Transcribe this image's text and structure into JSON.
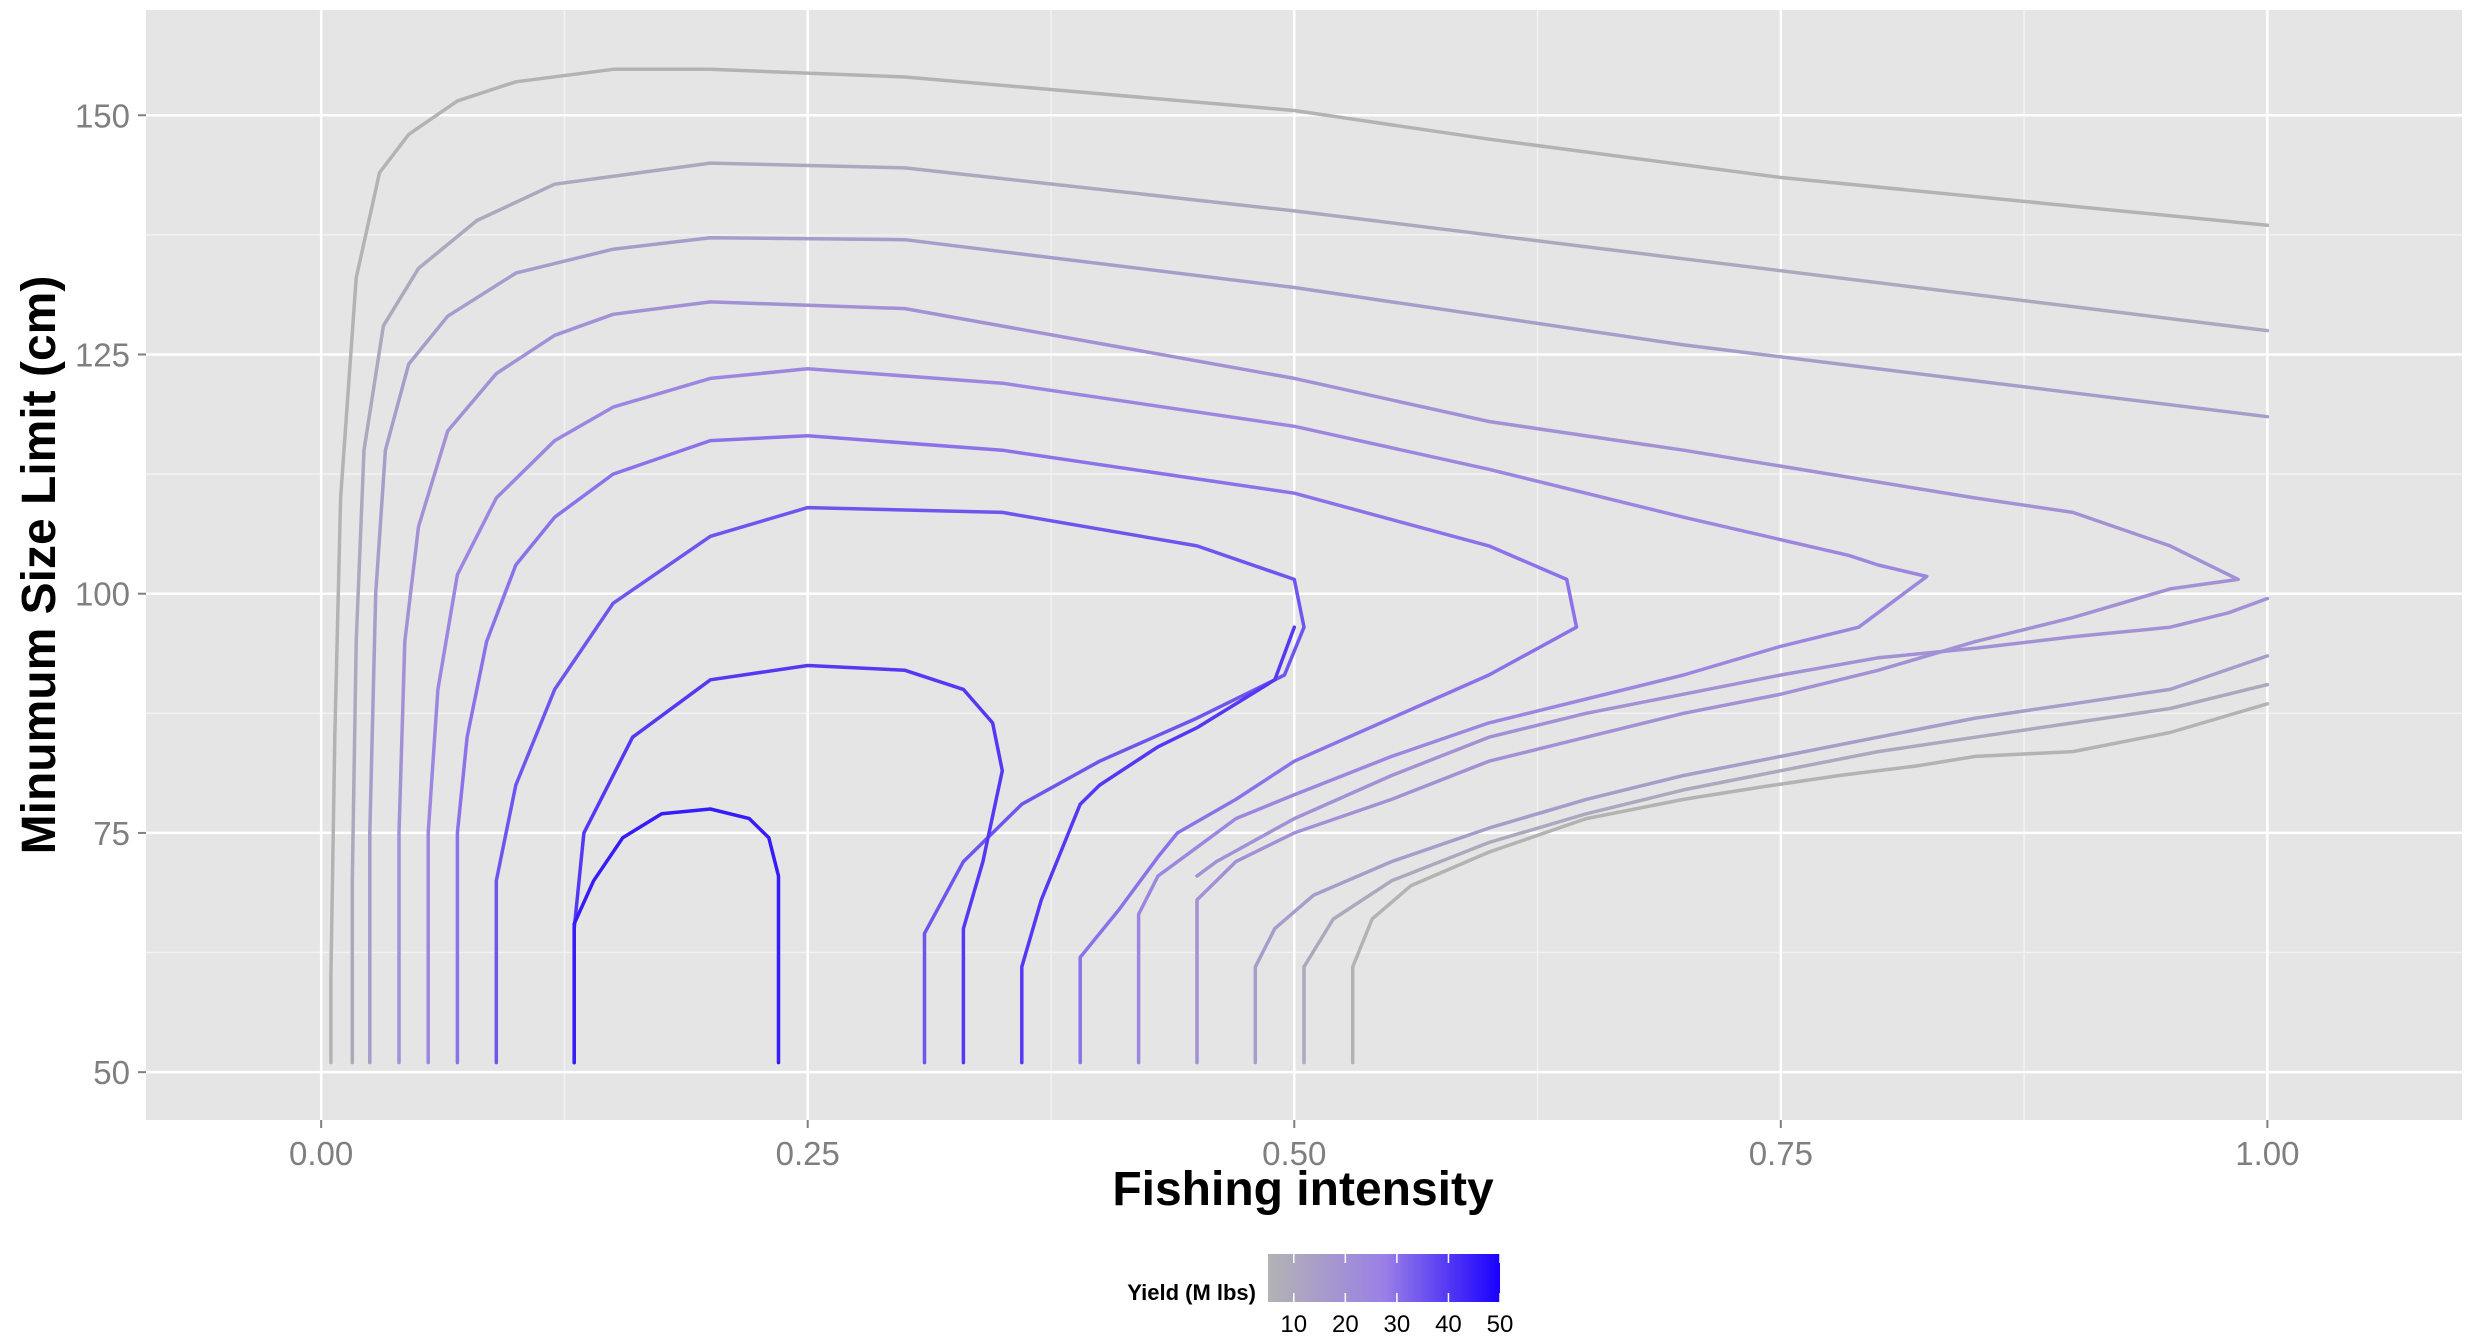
{
  "chart_data": {
    "type": "contour",
    "xlabel": "Fishing intensity",
    "ylabel": "Minumum Size Limit (cm)",
    "xlim": [
      -0.09,
      1.1
    ],
    "ylim": [
      45,
      161
    ],
    "x_ticks": [
      {
        "value": 0.0,
        "label": "0.00"
      },
      {
        "value": 0.25,
        "label": "0.25"
      },
      {
        "value": 0.5,
        "label": "0.50"
      },
      {
        "value": 0.75,
        "label": "0.75"
      },
      {
        "value": 1.0,
        "label": "1.00"
      }
    ],
    "y_ticks": [
      {
        "value": 50,
        "label": "50"
      },
      {
        "value": 75,
        "label": "75"
      },
      {
        "value": 100,
        "label": "100"
      },
      {
        "value": 125,
        "label": "125"
      },
      {
        "value": 150,
        "label": "150"
      }
    ],
    "grid": true,
    "background": "#e5e5e5",
    "legend": {
      "title": "Yield (M lbs)",
      "placement": "bottom",
      "range": [
        5,
        50
      ],
      "ticks": [
        10,
        20,
        30,
        40,
        50
      ],
      "color_low": "#b3b3b3",
      "color_high": "#1a00ff"
    },
    "series": [
      {
        "level": 5,
        "points": [
          [
            0.005,
            51
          ],
          [
            0.005,
            60
          ],
          [
            0.007,
            85
          ],
          [
            0.01,
            110
          ],
          [
            0.018,
            133
          ],
          [
            0.03,
            144
          ],
          [
            0.045,
            148
          ],
          [
            0.07,
            151.5
          ],
          [
            0.1,
            153.5
          ],
          [
            0.15,
            154.8
          ],
          [
            0.2,
            154.8
          ],
          [
            0.3,
            154
          ],
          [
            0.5,
            150.5
          ],
          [
            0.6,
            147.5
          ],
          [
            0.75,
            143.5
          ],
          [
            0.9,
            140.5
          ],
          [
            1.0,
            138.5
          ]
        ]
      },
      {
        "level": 5,
        "points": [
          [
            0.53,
            51
          ],
          [
            0.53,
            61
          ],
          [
            0.54,
            66
          ],
          [
            0.56,
            69.5
          ],
          [
            0.6,
            73
          ],
          [
            0.65,
            76.5
          ],
          [
            0.7,
            78.5
          ],
          [
            0.74,
            79.8
          ],
          [
            0.78,
            81
          ],
          [
            0.82,
            82
          ],
          [
            0.85,
            83
          ],
          [
            0.9,
            83.5
          ],
          [
            0.95,
            85.5
          ],
          [
            1.0,
            88.5
          ]
        ]
      },
      {
        "level": 10,
        "points": [
          [
            0.016,
            51
          ],
          [
            0.016,
            70
          ],
          [
            0.018,
            95
          ],
          [
            0.022,
            115
          ],
          [
            0.032,
            128
          ],
          [
            0.05,
            134
          ],
          [
            0.08,
            139
          ],
          [
            0.12,
            142.8
          ],
          [
            0.2,
            145
          ],
          [
            0.3,
            144.5
          ],
          [
            0.5,
            140
          ],
          [
            0.7,
            135
          ],
          [
            0.9,
            130
          ],
          [
            1.0,
            127.5
          ]
        ]
      },
      {
        "level": 10,
        "points": [
          [
            0.505,
            51
          ],
          [
            0.505,
            61
          ],
          [
            0.52,
            66
          ],
          [
            0.55,
            70
          ],
          [
            0.6,
            74
          ],
          [
            0.65,
            77
          ],
          [
            0.7,
            79.5
          ],
          [
            0.75,
            81.5
          ],
          [
            0.8,
            83.5
          ],
          [
            0.85,
            85
          ],
          [
            0.9,
            86.5
          ],
          [
            0.95,
            88
          ],
          [
            1.0,
            90.5
          ]
        ]
      },
      {
        "level": 15,
        "points": [
          [
            0.025,
            51
          ],
          [
            0.025,
            75
          ],
          [
            0.028,
            100
          ],
          [
            0.033,
            115
          ],
          [
            0.045,
            124
          ],
          [
            0.065,
            129
          ],
          [
            0.1,
            133.5
          ],
          [
            0.15,
            136
          ],
          [
            0.2,
            137.2
          ],
          [
            0.3,
            137
          ],
          [
            0.5,
            132
          ],
          [
            0.7,
            126
          ],
          [
            0.9,
            121
          ],
          [
            1.0,
            118.5
          ]
        ]
      },
      {
        "level": 15,
        "points": [
          [
            0.48,
            51
          ],
          [
            0.48,
            61
          ],
          [
            0.49,
            65
          ],
          [
            0.51,
            68.5
          ],
          [
            0.55,
            72
          ],
          [
            0.6,
            75.5
          ],
          [
            0.65,
            78.5
          ],
          [
            0.7,
            81
          ],
          [
            0.75,
            83
          ],
          [
            0.8,
            85
          ],
          [
            0.85,
            87
          ],
          [
            0.9,
            88.5
          ],
          [
            0.95,
            90
          ],
          [
            1.0,
            93.5
          ]
        ]
      },
      {
        "level": 20,
        "points": [
          [
            0.04,
            51
          ],
          [
            0.04,
            75
          ],
          [
            0.043,
            95
          ],
          [
            0.05,
            107
          ],
          [
            0.065,
            117
          ],
          [
            0.09,
            123
          ],
          [
            0.12,
            127
          ],
          [
            0.15,
            129.2
          ],
          [
            0.2,
            130.5
          ],
          [
            0.3,
            129.8
          ],
          [
            0.5,
            122.5
          ],
          [
            0.6,
            118
          ],
          [
            0.7,
            115
          ],
          [
            0.85,
            110
          ],
          [
            0.9,
            108.5
          ],
          [
            0.95,
            105
          ],
          [
            0.985,
            101.5
          ],
          [
            0.95,
            100.5
          ],
          [
            0.9,
            97.5
          ],
          [
            0.85,
            95
          ],
          [
            0.8,
            92
          ],
          [
            0.75,
            89.5
          ],
          [
            0.7,
            87.5
          ],
          [
            0.65,
            85
          ],
          [
            0.6,
            82.5
          ],
          [
            0.55,
            78.5
          ],
          [
            0.5,
            75
          ],
          [
            0.47,
            72
          ],
          [
            0.45,
            68
          ],
          [
            0.45,
            61
          ],
          [
            0.45,
            51
          ]
        ]
      },
      {
        "level": 20,
        "points": [
          [
            1.0,
            99.5
          ],
          [
            0.98,
            98
          ],
          [
            0.95,
            96.5
          ],
          [
            0.9,
            95.5
          ],
          [
            0.85,
            94.3
          ],
          [
            0.8,
            93.3
          ],
          [
            0.75,
            91.5
          ],
          [
            0.7,
            89.5
          ],
          [
            0.65,
            87.5
          ],
          [
            0.6,
            85
          ],
          [
            0.55,
            81
          ],
          [
            0.5,
            76.5
          ],
          [
            0.46,
            72
          ],
          [
            0.45,
            70.5
          ]
        ]
      },
      {
        "level": 25,
        "points": [
          [
            0.055,
            51
          ],
          [
            0.055,
            75
          ],
          [
            0.06,
            90
          ],
          [
            0.07,
            102
          ],
          [
            0.09,
            110
          ],
          [
            0.12,
            116
          ],
          [
            0.15,
            119.5
          ],
          [
            0.2,
            122.5
          ],
          [
            0.25,
            123.5
          ],
          [
            0.35,
            122
          ],
          [
            0.5,
            117.5
          ],
          [
            0.6,
            113
          ],
          [
            0.7,
            108
          ],
          [
            0.785,
            104
          ],
          [
            0.8,
            103
          ],
          [
            0.825,
            101.8
          ],
          [
            0.79,
            96.5
          ],
          [
            0.75,
            94.5
          ],
          [
            0.7,
            91.5
          ],
          [
            0.65,
            89
          ],
          [
            0.6,
            86.5
          ],
          [
            0.55,
            83
          ],
          [
            0.5,
            79
          ],
          [
            0.47,
            76.5
          ],
          [
            0.45,
            73.5
          ],
          [
            0.43,
            70.5
          ],
          [
            0.42,
            66.5
          ],
          [
            0.42,
            60
          ],
          [
            0.42,
            51
          ]
        ]
      },
      {
        "level": 30,
        "points": [
          [
            0.07,
            51
          ],
          [
            0.07,
            75
          ],
          [
            0.075,
            85
          ],
          [
            0.085,
            95
          ],
          [
            0.1,
            103
          ],
          [
            0.12,
            108
          ],
          [
            0.15,
            112.5
          ],
          [
            0.2,
            116
          ],
          [
            0.25,
            116.5
          ],
          [
            0.35,
            115
          ],
          [
            0.45,
            112
          ],
          [
            0.5,
            110.5
          ],
          [
            0.6,
            105
          ],
          [
            0.64,
            101.5
          ],
          [
            0.645,
            96.5
          ],
          [
            0.6,
            91.5
          ],
          [
            0.55,
            87
          ],
          [
            0.5,
            82.5
          ],
          [
            0.47,
            78.5
          ],
          [
            0.44,
            75
          ],
          [
            0.43,
            72.5
          ],
          [
            0.41,
            67
          ],
          [
            0.39,
            62
          ],
          [
            0.39,
            56
          ],
          [
            0.39,
            51
          ]
        ]
      },
      {
        "level": 35,
        "points": [
          [
            0.09,
            51
          ],
          [
            0.09,
            70
          ],
          [
            0.1,
            80
          ],
          [
            0.12,
            90
          ],
          [
            0.15,
            99
          ],
          [
            0.2,
            106
          ],
          [
            0.25,
            109
          ],
          [
            0.35,
            108.5
          ],
          [
            0.45,
            105
          ],
          [
            0.5,
            101.5
          ],
          [
            0.505,
            96.5
          ],
          [
            0.495,
            91.5
          ],
          [
            0.45,
            87
          ],
          [
            0.4,
            82.5
          ],
          [
            0.36,
            78
          ],
          [
            0.33,
            72
          ],
          [
            0.31,
            64.5
          ],
          [
            0.31,
            57
          ],
          [
            0.31,
            51
          ]
        ]
      },
      {
        "level": 40,
        "points": [
          [
            0.13,
            51
          ],
          [
            0.13,
            65
          ],
          [
            0.135,
            75
          ],
          [
            0.16,
            85
          ],
          [
            0.2,
            91
          ],
          [
            0.25,
            92.5
          ],
          [
            0.3,
            92
          ],
          [
            0.33,
            90
          ],
          [
            0.345,
            86.5
          ],
          [
            0.35,
            81.5
          ],
          [
            0.34,
            72
          ],
          [
            0.33,
            65
          ],
          [
            0.33,
            58
          ],
          [
            0.33,
            51
          ]
        ]
      },
      {
        "level": 40,
        "points": [
          [
            0.36,
            51
          ],
          [
            0.36,
            61
          ],
          [
            0.37,
            68
          ],
          [
            0.38,
            73
          ],
          [
            0.39,
            78
          ],
          [
            0.4,
            80
          ],
          [
            0.43,
            84
          ],
          [
            0.45,
            86
          ],
          [
            0.49,
            91
          ],
          [
            0.5,
            96.5
          ]
        ]
      },
      {
        "level": 45,
        "points": [
          [
            0.13,
            51
          ],
          [
            0.13,
            60
          ],
          [
            0.13,
            65.5
          ],
          [
            0.14,
            70
          ],
          [
            0.155,
            74.5
          ],
          [
            0.175,
            77
          ],
          [
            0.2,
            77.5
          ],
          [
            0.22,
            76.5
          ],
          [
            0.23,
            74.5
          ],
          [
            0.235,
            70.5
          ],
          [
            0.235,
            65
          ],
          [
            0.235,
            58
          ],
          [
            0.235,
            51
          ]
        ]
      }
    ]
  }
}
